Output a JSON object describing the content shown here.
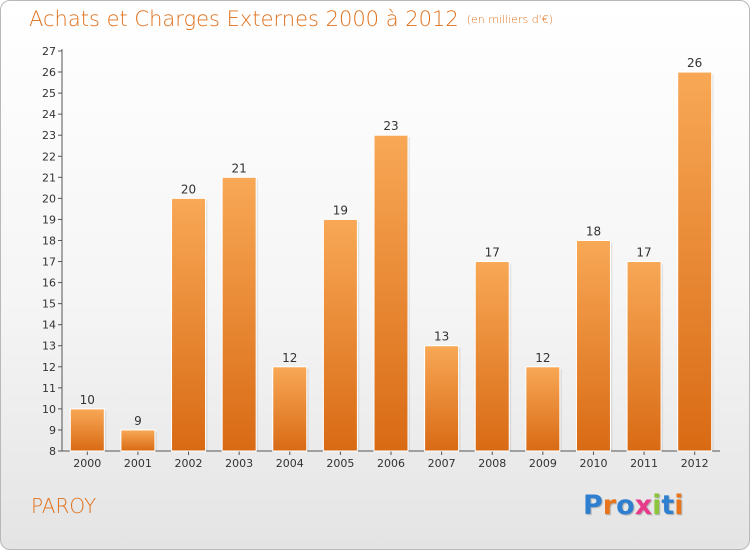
{
  "page": {
    "title": "Achats et Charges Externes 2000 à 2012",
    "unit": "(en milliers d'€)",
    "commune": "PAROY",
    "logo": [
      "P",
      "r",
      "o",
      "x",
      "i",
      "t",
      "i"
    ],
    "logo_colors": [
      "#2f7fd0",
      "#e8751c",
      "#2f7fd0",
      "#e83a8a",
      "#8cc43c",
      "#2f7fd0",
      "#e8751c"
    ]
  },
  "chart_data": {
    "type": "bar",
    "title": "Achats et Charges Externes 2000 à 2012",
    "xlabel": "",
    "ylabel": "",
    "categories": [
      "2000",
      "2001",
      "2002",
      "2003",
      "2004",
      "2005",
      "2006",
      "2007",
      "2008",
      "2009",
      "2010",
      "2011",
      "2012"
    ],
    "values": [
      10,
      9,
      20,
      21,
      12,
      19,
      23,
      13,
      17,
      12,
      18,
      17,
      26
    ],
    "ylim": [
      8,
      27
    ],
    "yticks": [
      8,
      9,
      10,
      11,
      12,
      13,
      14,
      15,
      16,
      17,
      18,
      19,
      20,
      21,
      22,
      23,
      24,
      25,
      26,
      27
    ],
    "grid": false,
    "legend": "none",
    "bar_color": "#f0923a"
  }
}
